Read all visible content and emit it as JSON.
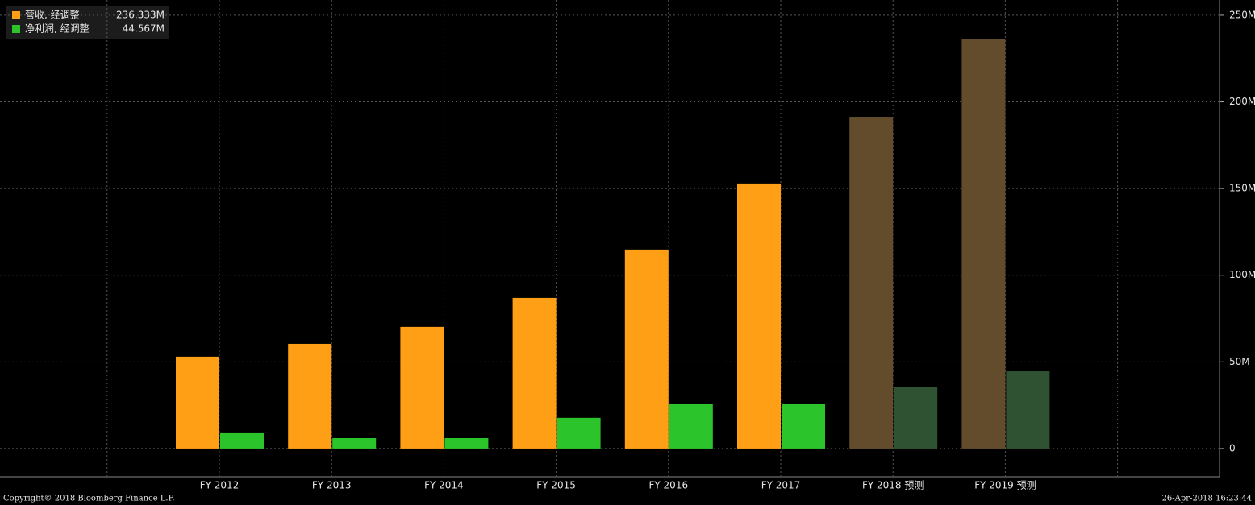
{
  "chart_data": {
    "type": "bar",
    "categories": [
      "FY 2012",
      "FY 2013",
      "FY 2014",
      "FY 2015",
      "FY 2016",
      "FY 2017",
      "FY 2018 预测",
      "FY 2019 预测"
    ],
    "series": [
      {
        "name": "营收, 经调整",
        "color": "#ff9f15",
        "legend_value": "236.333M",
        "colors": [
          "#ff9f15",
          "#ff9f15",
          "#ff9f15",
          "#ff9f15",
          "#ff9f15",
          "#ff9f15",
          "#624c2b",
          "#624c2b"
        ],
        "values": [
          53.0,
          60.4,
          70.2,
          86.9,
          114.8,
          152.9,
          191.4,
          236.333
        ]
      },
      {
        "name": "净利润, 经调整",
        "color": "#2bc42b",
        "legend_value": "44.567M",
        "colors": [
          "#2bc42b",
          "#2bc42b",
          "#2bc42b",
          "#2bc42b",
          "#2bc42b",
          "#2bc42b",
          "#2f5233",
          "#2f5233"
        ],
        "values": [
          9.3,
          6.0,
          6.0,
          17.7,
          26.0,
          26.0,
          35.3,
          44.567
        ]
      }
    ],
    "ylim": [
      -16.3,
      258.8
    ],
    "yticks": [
      0,
      {
        "value": 50,
        "label": "50M"
      },
      {
        "value": 100,
        "label": "100M"
      },
      {
        "value": 150,
        "label": "150M"
      },
      {
        "value": 200,
        "label": "200M"
      },
      {
        "value": 250,
        "label": "250M"
      }
    ],
    "grid": true,
    "legend": "top-left"
  },
  "footer": {
    "copyright": "Copyright© 2018 Bloomberg Finance L.P.",
    "date": "26-Apr-2018 16:23:44"
  }
}
